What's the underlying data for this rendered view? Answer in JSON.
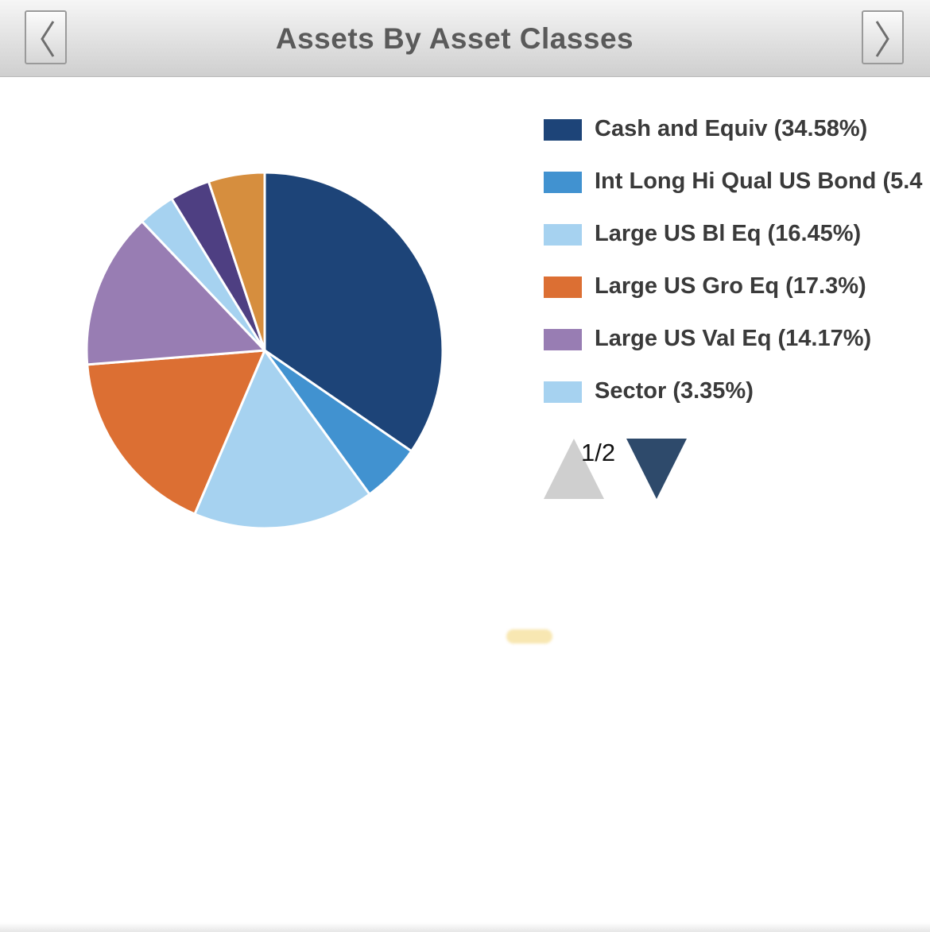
{
  "header": {
    "title": "Assets By Asset Classes",
    "prev_icon": "chevron-left-icon",
    "next_icon": "chevron-right-icon"
  },
  "chart_data": {
    "type": "pie",
    "title": "Assets By Asset Classes",
    "start": "12 o'clock, clockwise",
    "slices": [
      {
        "label": "Cash and Equiv",
        "legend_text": "Cash and Equiv (34.58%)",
        "value": 34.58,
        "color": "#1d4478"
      },
      {
        "label": "Int Long Hi Qual US Bond",
        "legend_text": "Int Long Hi Qual US Bond (5.4",
        "value": 5.4,
        "color": "#4192d0"
      },
      {
        "label": "Large US Bl Eq",
        "legend_text": "Large US Bl Eq (16.45%)",
        "value": 16.45,
        "color": "#a6d2f0"
      },
      {
        "label": "Large US Gro Eq",
        "legend_text": "Large US Gro Eq (17.3%)",
        "value": 17.3,
        "color": "#dc6f33"
      },
      {
        "label": "Large US Val Eq",
        "legend_text": "Large US Val Eq (14.17%)",
        "value": 14.17,
        "color": "#987db3"
      },
      {
        "label": "Sector",
        "legend_text": "Sector (3.35%)",
        "value": 3.35,
        "color": "#a6d2f0"
      },
      {
        "label": "",
        "legend_text": "",
        "value": 3.65,
        "color": "#4e3f82"
      },
      {
        "label": "",
        "legend_text": "",
        "value": 5.1,
        "color": "#d68e3e"
      }
    ],
    "legend_visible_count": 6,
    "legend_placement": "right"
  },
  "pager": {
    "text": "1/2",
    "up_color": "#cfcfcf",
    "down_color": "#2e4a6b"
  }
}
